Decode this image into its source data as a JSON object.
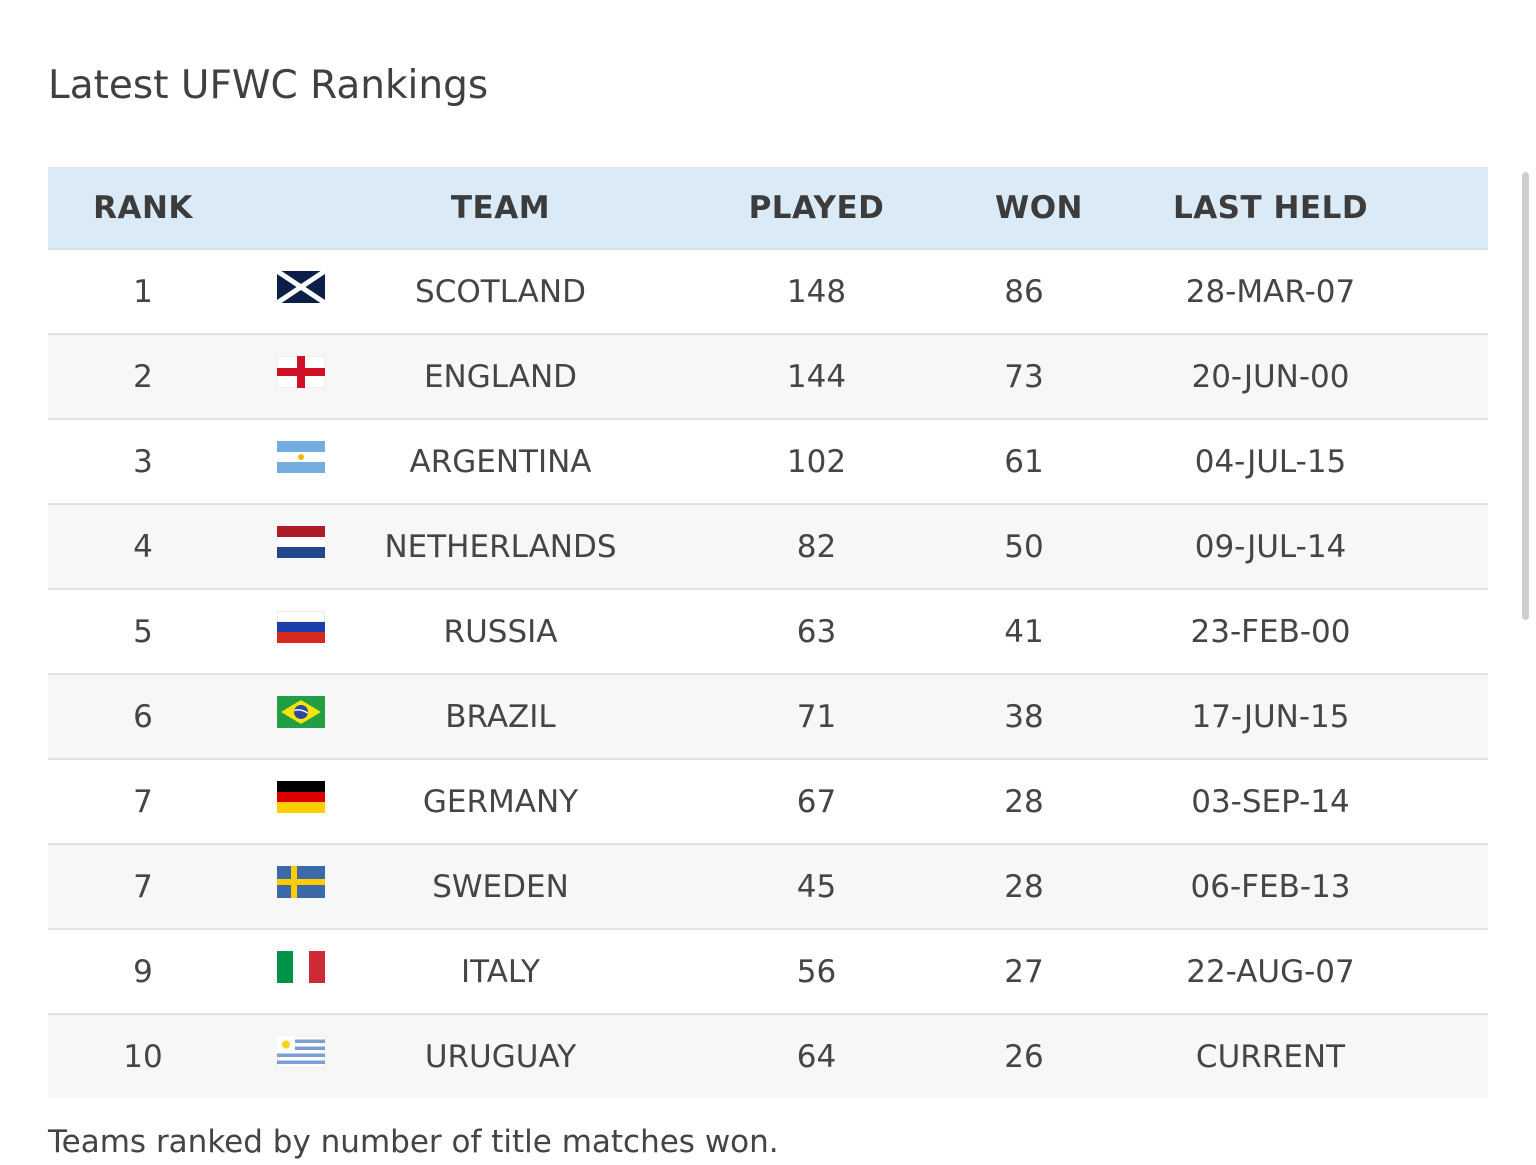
{
  "page": {
    "title": "Latest UFWC Rankings",
    "footnote": "Teams ranked by number of title matches won."
  },
  "table": {
    "headers": {
      "rank": "RANK",
      "team": "TEAM",
      "played": "PLAYED",
      "won": "WON",
      "last_held": "LAST HELD"
    },
    "rows": [
      {
        "rank": "1",
        "flag": "scotland-flag-icon",
        "team": "SCOTLAND",
        "played": "148",
        "won": "86",
        "last_held": "28-MAR-07"
      },
      {
        "rank": "2",
        "flag": "england-flag-icon",
        "team": "ENGLAND",
        "played": "144",
        "won": "73",
        "last_held": "20-JUN-00"
      },
      {
        "rank": "3",
        "flag": "argentina-flag-icon",
        "team": "ARGENTINA",
        "played": "102",
        "won": "61",
        "last_held": "04-JUL-15"
      },
      {
        "rank": "4",
        "flag": "netherlands-flag-icon",
        "team": "NETHERLANDS",
        "played": "82",
        "won": "50",
        "last_held": "09-JUL-14"
      },
      {
        "rank": "5",
        "flag": "russia-flag-icon",
        "team": "RUSSIA",
        "played": "63",
        "won": "41",
        "last_held": "23-FEB-00"
      },
      {
        "rank": "6",
        "flag": "brazil-flag-icon",
        "team": "BRAZIL",
        "played": "71",
        "won": "38",
        "last_held": "17-JUN-15"
      },
      {
        "rank": "7",
        "flag": "germany-flag-icon",
        "team": "GERMANY",
        "played": "67",
        "won": "28",
        "last_held": "03-SEP-14"
      },
      {
        "rank": "7",
        "flag": "sweden-flag-icon",
        "team": "SWEDEN",
        "played": "45",
        "won": "28",
        "last_held": "06-FEB-13"
      },
      {
        "rank": "9",
        "flag": "italy-flag-icon",
        "team": "ITALY",
        "played": "56",
        "won": "27",
        "last_held": "22-AUG-07"
      },
      {
        "rank": "10",
        "flag": "uruguay-flag-icon",
        "team": "URUGUAY",
        "played": "64",
        "won": "26",
        "last_held": "CURRENT"
      }
    ]
  },
  "colors": {
    "header_bg": "#daeaf7",
    "row_alt_bg": "#f7f7f7",
    "text": "#444444"
  }
}
